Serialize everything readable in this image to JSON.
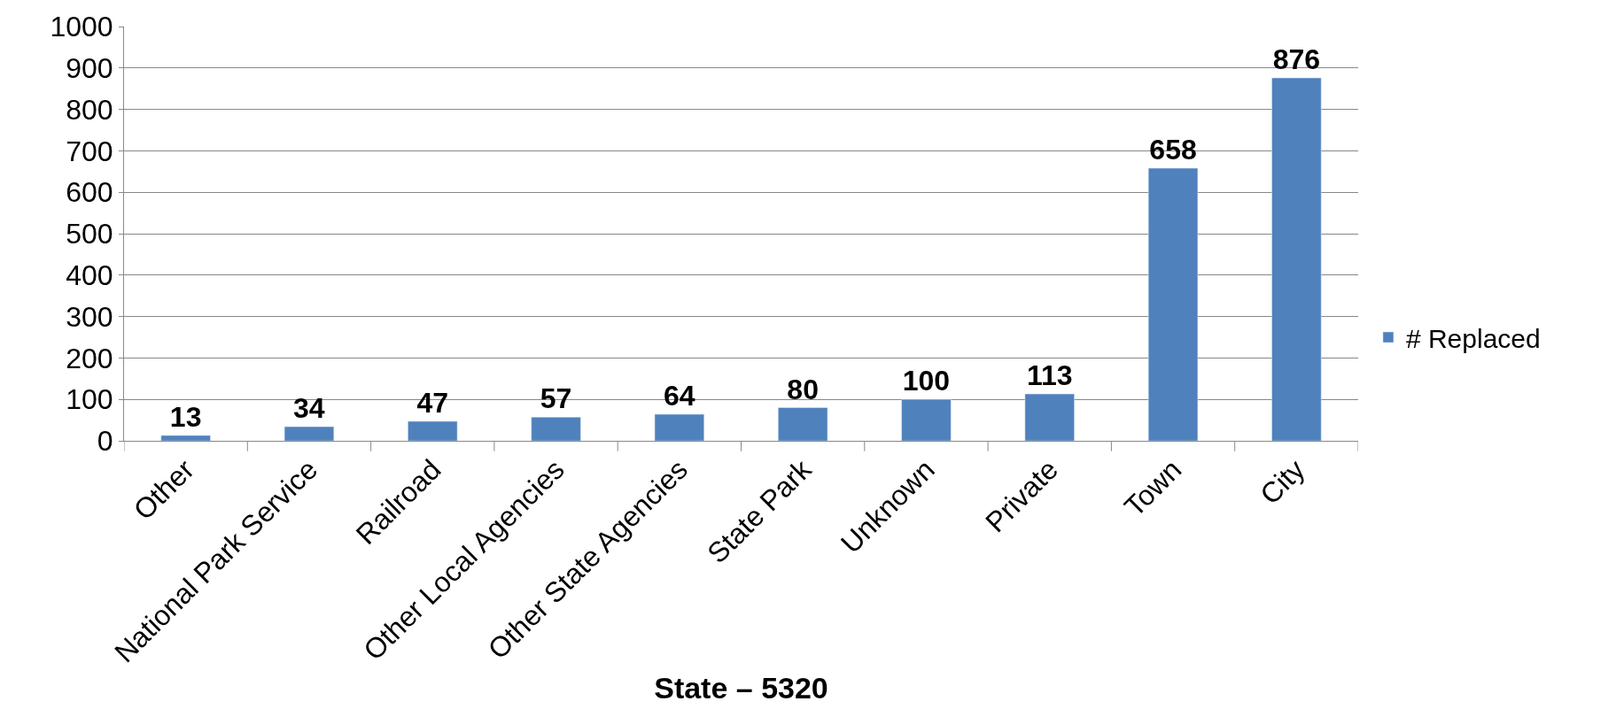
{
  "chart_data": {
    "type": "bar",
    "xlabel": "State – 5320",
    "categories": [
      "Other",
      "National Park Service",
      "Railroad",
      "Other Local Agencies",
      "Other State Agencies",
      "State Park",
      "Unknown",
      "Private",
      "Town",
      "City"
    ],
    "series": [
      {
        "name": "# Replaced",
        "color": "#4f81bd",
        "values": [
          13,
          34,
          47,
          57,
          64,
          80,
          100,
          113,
          658,
          876
        ]
      }
    ],
    "ylim": [
      0,
      1000
    ],
    "yticks": [
      0,
      100,
      200,
      300,
      400,
      500,
      600,
      700,
      800,
      900,
      1000
    ],
    "grid": "y",
    "legend": "right",
    "data_labels": true
  }
}
